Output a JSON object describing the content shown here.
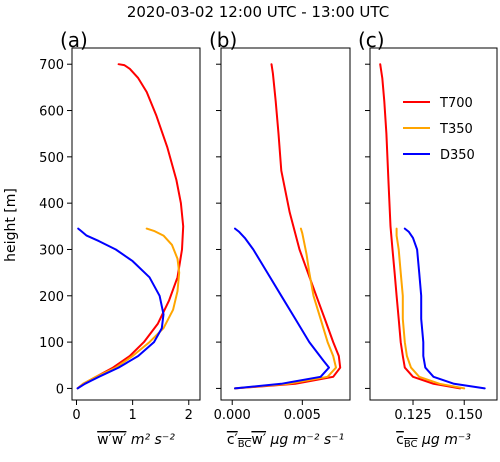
{
  "title": "2020-03-02 12:00 UTC  - 13:00 UTC",
  "ylabel": "height [m]",
  "legend": {
    "placement": "upper-right of panel c",
    "entries": [
      {
        "name": "T700",
        "color": "#ff0000"
      },
      {
        "name": "T350",
        "color": "#ffa500"
      },
      {
        "name": "D350",
        "color": "#0000ff"
      }
    ]
  },
  "chart_data": [
    {
      "type": "line",
      "panel": "(a)",
      "xlabel": "w'w' m² s⁻²",
      "xlabel_var": "w′w′",
      "xlabel_unit": "m² s⁻²",
      "xlim": [
        -0.08,
        2.2
      ],
      "ylim": [
        -25,
        735
      ],
      "xticks": [
        0,
        1,
        2
      ],
      "xtick_labels": [
        "0",
        "1",
        "2"
      ],
      "yticks": [
        0,
        100,
        200,
        300,
        400,
        500,
        600,
        700
      ],
      "series": [
        {
          "name": "T700",
          "color": "#ff0000",
          "x": [
            0.02,
            0.12,
            0.35,
            0.65,
            0.95,
            1.2,
            1.45,
            1.65,
            1.8,
            1.88,
            1.9,
            1.86,
            1.78,
            1.62,
            1.42,
            1.25,
            1.1,
            0.95,
            0.85,
            0.75
          ],
          "y": [
            0,
            10,
            25,
            45,
            70,
            100,
            140,
            190,
            240,
            300,
            350,
            400,
            450,
            520,
            590,
            640,
            670,
            690,
            698,
            700
          ]
        },
        {
          "name": "T350",
          "color": "#ffa500",
          "x": [
            0.02,
            0.12,
            0.35,
            0.7,
            1.0,
            1.3,
            1.55,
            1.72,
            1.8,
            1.83,
            1.8,
            1.7,
            1.55,
            1.38,
            1.25
          ],
          "y": [
            0,
            10,
            25,
            45,
            70,
            100,
            130,
            170,
            210,
            250,
            280,
            310,
            330,
            340,
            345
          ]
        },
        {
          "name": "D350",
          "color": "#0000ff",
          "x": [
            0.02,
            0.15,
            0.4,
            0.75,
            1.1,
            1.38,
            1.52,
            1.55,
            1.48,
            1.3,
            1.0,
            0.7,
            0.4,
            0.18,
            0.08,
            0.03
          ],
          "y": [
            0,
            10,
            25,
            45,
            70,
            100,
            130,
            160,
            200,
            240,
            275,
            300,
            318,
            330,
            340,
            345
          ]
        }
      ]
    },
    {
      "type": "line",
      "panel": "(b)",
      "xlabel_var": "c′BC w′",
      "xlabel_unit": "μg m⁻² s⁻¹",
      "xlim": [
        -0.0008,
        0.0084
      ],
      "ylim": [
        -25,
        735
      ],
      "xticks": [
        0.0,
        0.005
      ],
      "xtick_labels": [
        "0.000",
        "0.005"
      ],
      "yticks": [
        0,
        100,
        200,
        300,
        400,
        500,
        600,
        700
      ],
      "series": [
        {
          "name": "T700",
          "color": "#ff0000",
          "x": [
            0.0002,
            0.0045,
            0.0072,
            0.0077,
            0.0076,
            0.0072,
            0.0066,
            0.006,
            0.0054,
            0.0048,
            0.0041,
            0.0035,
            0.0033,
            0.0031,
            0.003,
            0.0029,
            0.0028
          ],
          "y": [
            0,
            10,
            25,
            45,
            70,
            100,
            150,
            200,
            250,
            300,
            380,
            470,
            550,
            620,
            650,
            680,
            700
          ]
        },
        {
          "name": "T350",
          "color": "#ffa500",
          "x": [
            0.0002,
            0.004,
            0.0068,
            0.0074,
            0.0072,
            0.0068,
            0.0063,
            0.0058,
            0.0055,
            0.0053,
            0.0051,
            0.005,
            0.0049
          ],
          "y": [
            0,
            10,
            25,
            45,
            70,
            100,
            150,
            200,
            250,
            290,
            320,
            335,
            345
          ]
        },
        {
          "name": "D350",
          "color": "#0000ff",
          "x": [
            0.0002,
            0.0035,
            0.0063,
            0.0069,
            0.0065,
            0.0055,
            0.0045,
            0.0035,
            0.0025,
            0.0015,
            0.0009,
            0.0005,
            0.0002
          ],
          "y": [
            0,
            10,
            25,
            45,
            60,
            100,
            150,
            200,
            250,
            300,
            325,
            338,
            345
          ]
        }
      ]
    },
    {
      "type": "line",
      "panel": "(c)",
      "xlabel_var": "c_BC",
      "xlabel_unit": "μg m⁻³",
      "xlim": [
        0.104,
        0.166
      ],
      "ylim": [
        -25,
        735
      ],
      "xticks": [
        0.125,
        0.15
      ],
      "xtick_labels": [
        "0.125",
        "0.150"
      ],
      "yticks": [
        0,
        100,
        200,
        300,
        400,
        500,
        600,
        700
      ],
      "series": [
        {
          "name": "T700",
          "color": "#ff0000",
          "x": [
            0.148,
            0.135,
            0.125,
            0.121,
            0.12,
            0.119,
            0.118,
            0.117,
            0.116,
            0.115,
            0.114,
            0.113,
            0.112,
            0.111,
            0.11,
            0.109
          ],
          "y": [
            0,
            10,
            25,
            45,
            70,
            100,
            150,
            200,
            250,
            300,
            350,
            450,
            550,
            620,
            670,
            700
          ]
        },
        {
          "name": "T350",
          "color": "#ffa500",
          "x": [
            0.15,
            0.138,
            0.128,
            0.124,
            0.122,
            0.121,
            0.12,
            0.12,
            0.119,
            0.118,
            0.117,
            0.117
          ],
          "y": [
            0,
            10,
            25,
            45,
            70,
            100,
            150,
            200,
            250,
            300,
            330,
            345
          ]
        },
        {
          "name": "D350",
          "color": "#0000ff",
          "x": [
            0.16,
            0.145,
            0.135,
            0.131,
            0.13,
            0.13,
            0.129,
            0.129,
            0.128,
            0.127,
            0.125,
            0.123,
            0.121
          ],
          "y": [
            0,
            10,
            25,
            45,
            70,
            100,
            150,
            200,
            250,
            300,
            325,
            338,
            345
          ]
        }
      ]
    }
  ]
}
